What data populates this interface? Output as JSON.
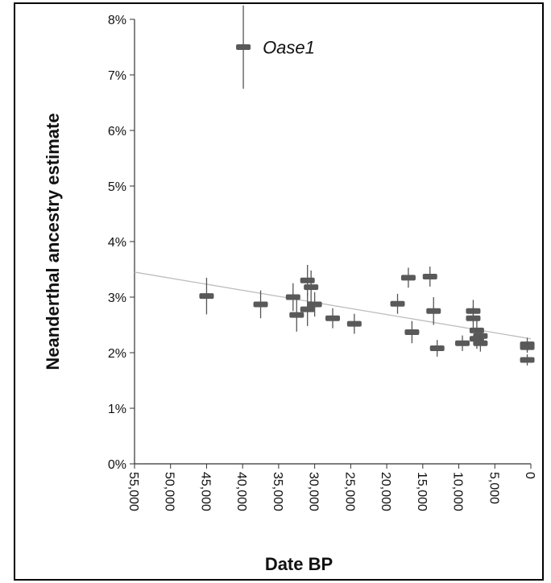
{
  "chart_data": {
    "type": "scatter",
    "title": "",
    "xlabel": "Date BP",
    "ylabel": "Neanderthal ancestry estimate",
    "xlim": [
      55000,
      0
    ],
    "ylim": [
      0,
      8
    ],
    "x_reversed": true,
    "x_ticks": [
      55000,
      50000,
      45000,
      40000,
      35000,
      30000,
      25000,
      20000,
      15000,
      10000,
      5000,
      0
    ],
    "x_tick_labels": [
      "55,000",
      "50,000",
      "45,000",
      "40,000",
      "35,000",
      "30,000",
      "25,000",
      "20,000",
      "15,000",
      "10,000",
      "5,000",
      "0"
    ],
    "y_ticks": [
      0,
      1,
      2,
      3,
      4,
      5,
      6,
      7,
      8
    ],
    "y_tick_labels": [
      "0%",
      "1%",
      "2%",
      "3%",
      "4%",
      "5%",
      "6%",
      "7%",
      "8%"
    ],
    "grid": false,
    "legend": "none",
    "marker_color": "#595959",
    "errorbar_color": "#555555",
    "trendline": {
      "from": [
        55000,
        3.45
      ],
      "to": [
        0,
        2.25
      ],
      "color": "#bdbdbd"
    },
    "points": [
      {
        "x": 39900,
        "y": 7.5,
        "err": 0.75,
        "label": "Oase1"
      },
      {
        "x": 45000,
        "y": 3.02,
        "err": 0.33
      },
      {
        "x": 37500,
        "y": 2.87,
        "err": 0.25
      },
      {
        "x": 33000,
        "y": 3.0,
        "err": 0.25
      },
      {
        "x": 32500,
        "y": 2.68,
        "err": 0.3
      },
      {
        "x": 31000,
        "y": 3.3,
        "err": 0.28
      },
      {
        "x": 31000,
        "y": 2.78,
        "err": 0.3
      },
      {
        "x": 30500,
        "y": 3.18,
        "err": 0.3
      },
      {
        "x": 30000,
        "y": 2.87,
        "err": 0.22
      },
      {
        "x": 27500,
        "y": 2.62,
        "err": 0.18
      },
      {
        "x": 24500,
        "y": 2.52,
        "err": 0.18
      },
      {
        "x": 18500,
        "y": 2.88,
        "err": 0.18
      },
      {
        "x": 17000,
        "y": 3.35,
        "err": 0.18
      },
      {
        "x": 16500,
        "y": 2.37,
        "err": 0.2
      },
      {
        "x": 14000,
        "y": 3.37,
        "err": 0.18
      },
      {
        "x": 13500,
        "y": 2.75,
        "err": 0.25
      },
      {
        "x": 13000,
        "y": 2.08,
        "err": 0.15
      },
      {
        "x": 9500,
        "y": 2.17,
        "err": 0.14
      },
      {
        "x": 8000,
        "y": 2.75,
        "err": 0.2
      },
      {
        "x": 8000,
        "y": 2.62,
        "err": 0.2
      },
      {
        "x": 7500,
        "y": 2.4,
        "err": 0.18
      },
      {
        "x": 7500,
        "y": 2.25,
        "err": 0.18
      },
      {
        "x": 7000,
        "y": 2.3,
        "err": 0.15
      },
      {
        "x": 7000,
        "y": 2.17,
        "err": 0.15
      },
      {
        "x": 500,
        "y": 2.15,
        "err": 0.12
      },
      {
        "x": 500,
        "y": 2.1,
        "err": 0.1
      },
      {
        "x": 500,
        "y": 1.87,
        "err": 0.1
      }
    ]
  }
}
